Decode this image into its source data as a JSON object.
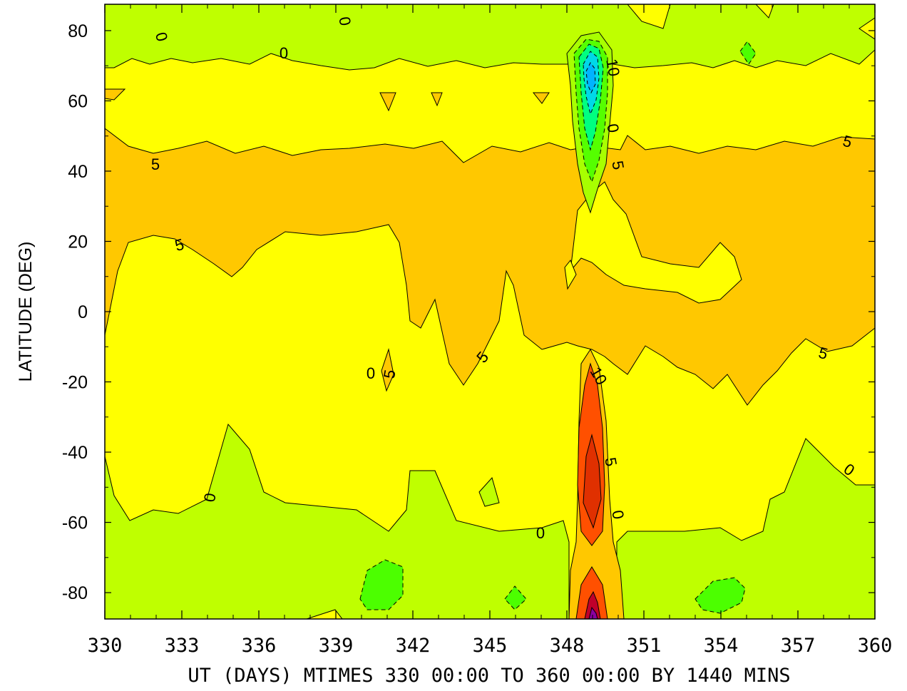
{
  "chart_data": {
    "type": "heatmap",
    "subtype": "filled-contour",
    "xlabel": "UT (DAYS) MTIMES 330 00:00 TO 360 00:00 BY 1440 MINS",
    "ylabel": "LATITUDE (DEG)",
    "xlim": [
      330,
      360
    ],
    "ylim": [
      -87.5,
      87.5
    ],
    "x_ticks": [
      330,
      333,
      336,
      339,
      342,
      345,
      348,
      351,
      354,
      357,
      360
    ],
    "y_ticks": [
      80,
      60,
      40,
      20,
      0,
      -20,
      -40,
      -60,
      -80
    ],
    "grid": false,
    "color_levels": [
      {
        "range": "< 0",
        "color": "#bfff00"
      },
      {
        "range": "0 to 5",
        "color": "#ffff00"
      },
      {
        "range": "5 to 10",
        "color": "#ffc800"
      },
      {
        "range": "> 10",
        "color": "#ff7a00"
      },
      {
        "range": ">> 10",
        "color": "#ff3a00"
      },
      {
        "range": "peak",
        "color": "#aa0033"
      },
      {
        "range": "<< 0",
        "color": "#55ff00"
      },
      {
        "range": "min",
        "color": "#00ccff"
      }
    ],
    "bands": [
      {
        "name": "north-polar-negative",
        "level": "< 0",
        "lat_range": [
          65,
          87.5
        ],
        "days": [
          330,
          360
        ]
      },
      {
        "name": "north-mid-positive",
        "level": "0 to 5",
        "lat_range": [
          47,
          67
        ],
        "days": [
          330,
          360
        ]
      },
      {
        "name": "tropical-maximum",
        "level": "5 to 10",
        "lat_range": [
          -15,
          47
        ],
        "days": [
          330,
          360
        ]
      },
      {
        "name": "south-mid-positive",
        "level": "0 to 5",
        "lat_range": [
          -60,
          -15
        ],
        "days": [
          330,
          360
        ]
      },
      {
        "name": "south-polar-negative",
        "level": "< 0",
        "lat_range": [
          -87.5,
          -45
        ],
        "days": [
          330,
          360
        ]
      }
    ],
    "features": [
      {
        "name": "northern-minimum",
        "day": 349.1,
        "lat": 66,
        "level": "min",
        "approx_value": -15
      },
      {
        "name": "southern-maximum",
        "day": 349.1,
        "lat": -50,
        "level": ">> 10",
        "approx_value": 20
      },
      {
        "name": "south-pole-maximum",
        "day": 349.1,
        "lat": -86,
        "level": "peak",
        "approx_value": 25
      }
    ],
    "contour_labels": [
      "0",
      "0",
      "0",
      "10",
      "0",
      "5",
      "5",
      "5",
      "5",
      "5",
      "5",
      "5",
      "10",
      "5",
      "0",
      "0",
      "0",
      "0",
      "0"
    ]
  }
}
